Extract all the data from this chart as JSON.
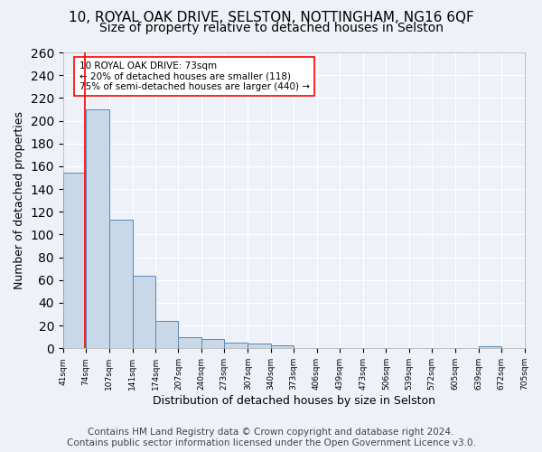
{
  "title1": "10, ROYAL OAK DRIVE, SELSTON, NOTTINGHAM, NG16 6QF",
  "title2": "Size of property relative to detached houses in Selston",
  "xlabel": "Distribution of detached houses by size in Selston",
  "ylabel": "Number of detached properties",
  "bar_edges": [
    41,
    74,
    107,
    141,
    174,
    207,
    240,
    273,
    307,
    340,
    373,
    406,
    439,
    473,
    506,
    539,
    572,
    605,
    639,
    672,
    705
  ],
  "bar_heights": [
    154,
    210,
    113,
    64,
    24,
    10,
    8,
    5,
    4,
    3,
    0,
    0,
    0,
    0,
    0,
    0,
    0,
    0,
    2,
    0
  ],
  "bar_color": "#c8d8e8",
  "bar_edge_color": "#5588bb",
  "red_line_x": 73,
  "annotation_box_text": "10 ROYAL OAK DRIVE: 73sqm\n← 20% of detached houses are smaller (118)\n75% of semi-detached houses are larger (440) →",
  "ylim": [
    0,
    260
  ],
  "yticks": [
    0,
    20,
    40,
    60,
    80,
    100,
    120,
    140,
    160,
    180,
    200,
    220,
    240,
    260
  ],
  "tick_labels": [
    "41sqm",
    "74sqm",
    "107sqm",
    "141sqm",
    "174sqm",
    "207sqm",
    "240sqm",
    "273sqm",
    "307sqm",
    "340sqm",
    "373sqm",
    "406sqm",
    "439sqm",
    "473sqm",
    "506sqm",
    "539sqm",
    "572sqm",
    "605sqm",
    "639sqm",
    "672sqm",
    "705sqm"
  ],
  "footnote": "Contains HM Land Registry data © Crown copyright and database right 2024.\nContains public sector information licensed under the Open Government Licence v3.0.",
  "bg_color": "#eef2f8",
  "grid_color": "#ffffff",
  "title1_fontsize": 11,
  "title2_fontsize": 10,
  "xlabel_fontsize": 9,
  "ylabel_fontsize": 9,
  "footnote_fontsize": 7.5
}
